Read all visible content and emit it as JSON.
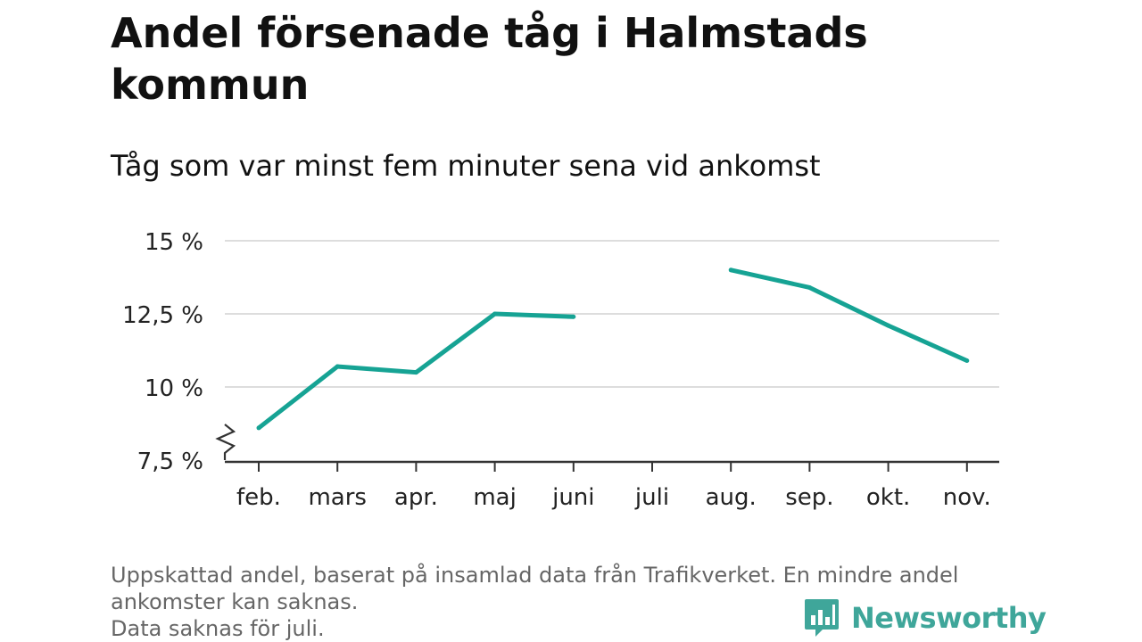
{
  "title": "Andel försenade tåg i Halmstads kommun",
  "subtitle": "Tåg som var minst fem minuter sena vid ankomst",
  "footnote": {
    "line1": "Uppskattad andel, baserat på insamlad data från Trafikverket. En mindre andel",
    "line2": "ankomster kan saknas.",
    "line3": "Data saknas för juli."
  },
  "brand": {
    "name": "Newsworthy",
    "icon": "newsworthy-logo-icon"
  },
  "colors": {
    "line": "#16a394",
    "grid": "#dddddd",
    "axis": "#333333",
    "brand": "#3fa69a"
  },
  "chart_data": {
    "type": "line",
    "categories": [
      "feb.",
      "mars",
      "apr.",
      "maj",
      "juni",
      "juli",
      "aug.",
      "sep.",
      "okt.",
      "nov."
    ],
    "series": [
      {
        "values": [
          8.6,
          10.7,
          10.5,
          12.5,
          12.4,
          null,
          14.0,
          13.4,
          12.1,
          10.9
        ]
      }
    ],
    "yticks": [
      7.5,
      10,
      12.5,
      15
    ],
    "ytick_labels": [
      "7,5 %",
      "10 %",
      "12,5 %",
      "15 %"
    ],
    "ylim": [
      7.5,
      15
    ],
    "y_axis_break": true,
    "grid": true,
    "legend": "none"
  }
}
